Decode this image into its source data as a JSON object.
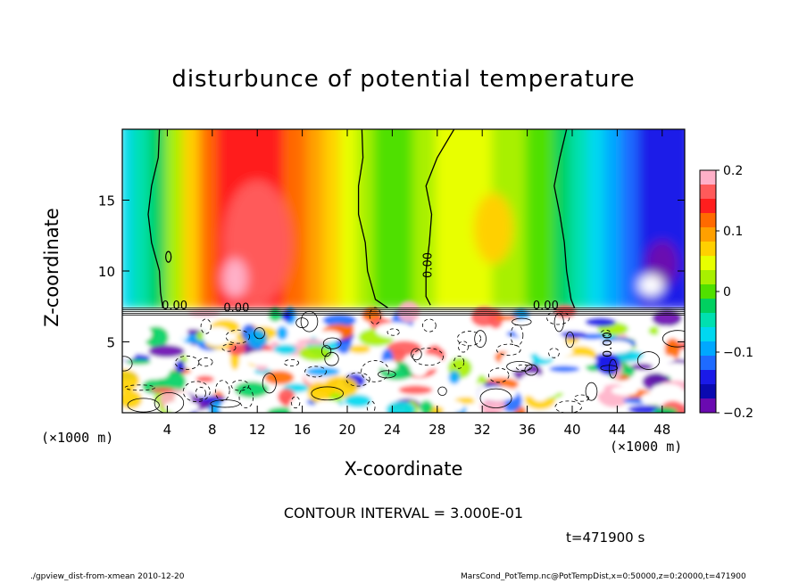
{
  "chart_data": {
    "type": "heatmap",
    "title": "disturbunce of potential temperature",
    "xlabel": "X-coordinate",
    "ylabel": "Z-coordinate",
    "x_unit_left": "(×1000 m)",
    "x_unit_right": "(×1000 m)",
    "xlim": [
      0,
      50
    ],
    "ylim": [
      0,
      20
    ],
    "x_ticks": [
      4,
      8,
      12,
      16,
      20,
      24,
      28,
      32,
      36,
      40,
      44,
      48
    ],
    "y_ticks": [
      5,
      10,
      15
    ],
    "colorbar": {
      "range": [
        -0.2,
        0.2
      ],
      "ticks": [
        0.2,
        0.1,
        0,
        -0.1,
        -0.2
      ],
      "tick_labels": [
        "0.2",
        "0.1",
        "0",
        "−0.1",
        "−0.2"
      ],
      "colors": [
        "#ffb0c8",
        "#ff5a5a",
        "#ff1e1e",
        "#ff6a00",
        "#ffa000",
        "#ffd000",
        "#e8ff00",
        "#a8f000",
        "#50e000",
        "#00d060",
        "#00e0b0",
        "#00d8f0",
        "#00a8ff",
        "#1e6bff",
        "#1a1ae8",
        "#0a0ab0",
        "#6a0ab0"
      ]
    },
    "contour_labels": [
      "0.00",
      "0.00",
      "0.00",
      "0.00",
      "0.00"
    ],
    "contour_interval": "CONTOUR INTERVAL = 3.000E-01",
    "time": "t=471900 s"
  },
  "footer": {
    "left": "./gpview_dist-from-xmean   2010-12-20",
    "right": "MarsCond_PotTemp.nc@PotTempDist,x=0:50000,z=0:20000,t=471900"
  }
}
